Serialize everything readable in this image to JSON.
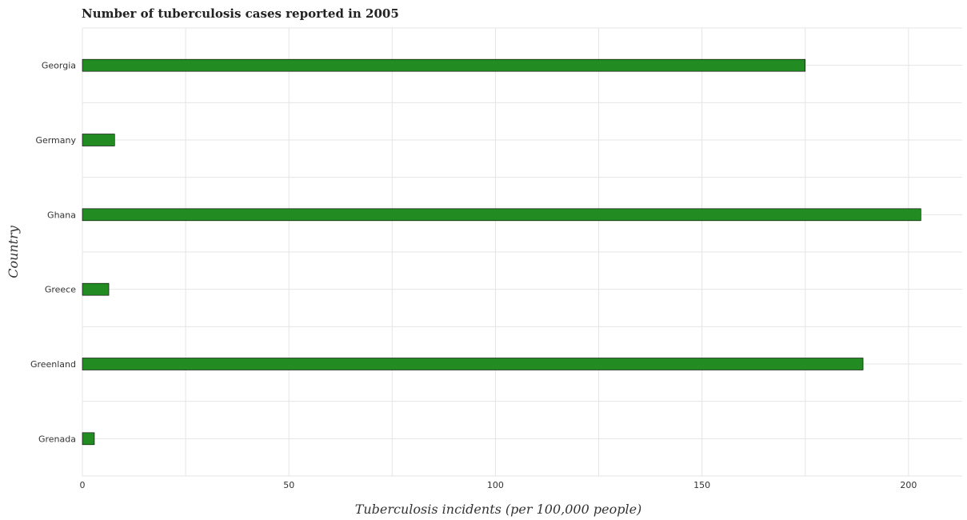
{
  "title": "Number of tuberculosis cases reported in 2005",
  "colors": {
    "bar": "#228b22",
    "bar_edge": "#000000",
    "grid": "#e5e5e5"
  },
  "chart_data": {
    "type": "bar",
    "orientation": "horizontal",
    "title": "Number of tuberculosis cases reported in 2005",
    "xlabel": "Tuberculosis incidents (per 100,000 people)",
    "ylabel": "Country",
    "categories": [
      "Georgia",
      "Germany",
      "Ghana",
      "Greece",
      "Greenland",
      "Grenada"
    ],
    "values": [
      175,
      7.8,
      203,
      6.4,
      189,
      2.9
    ],
    "xlim": [
      0,
      213
    ],
    "xticks": [
      0,
      50,
      100,
      150,
      200
    ],
    "grid": true,
    "legend": "none"
  }
}
